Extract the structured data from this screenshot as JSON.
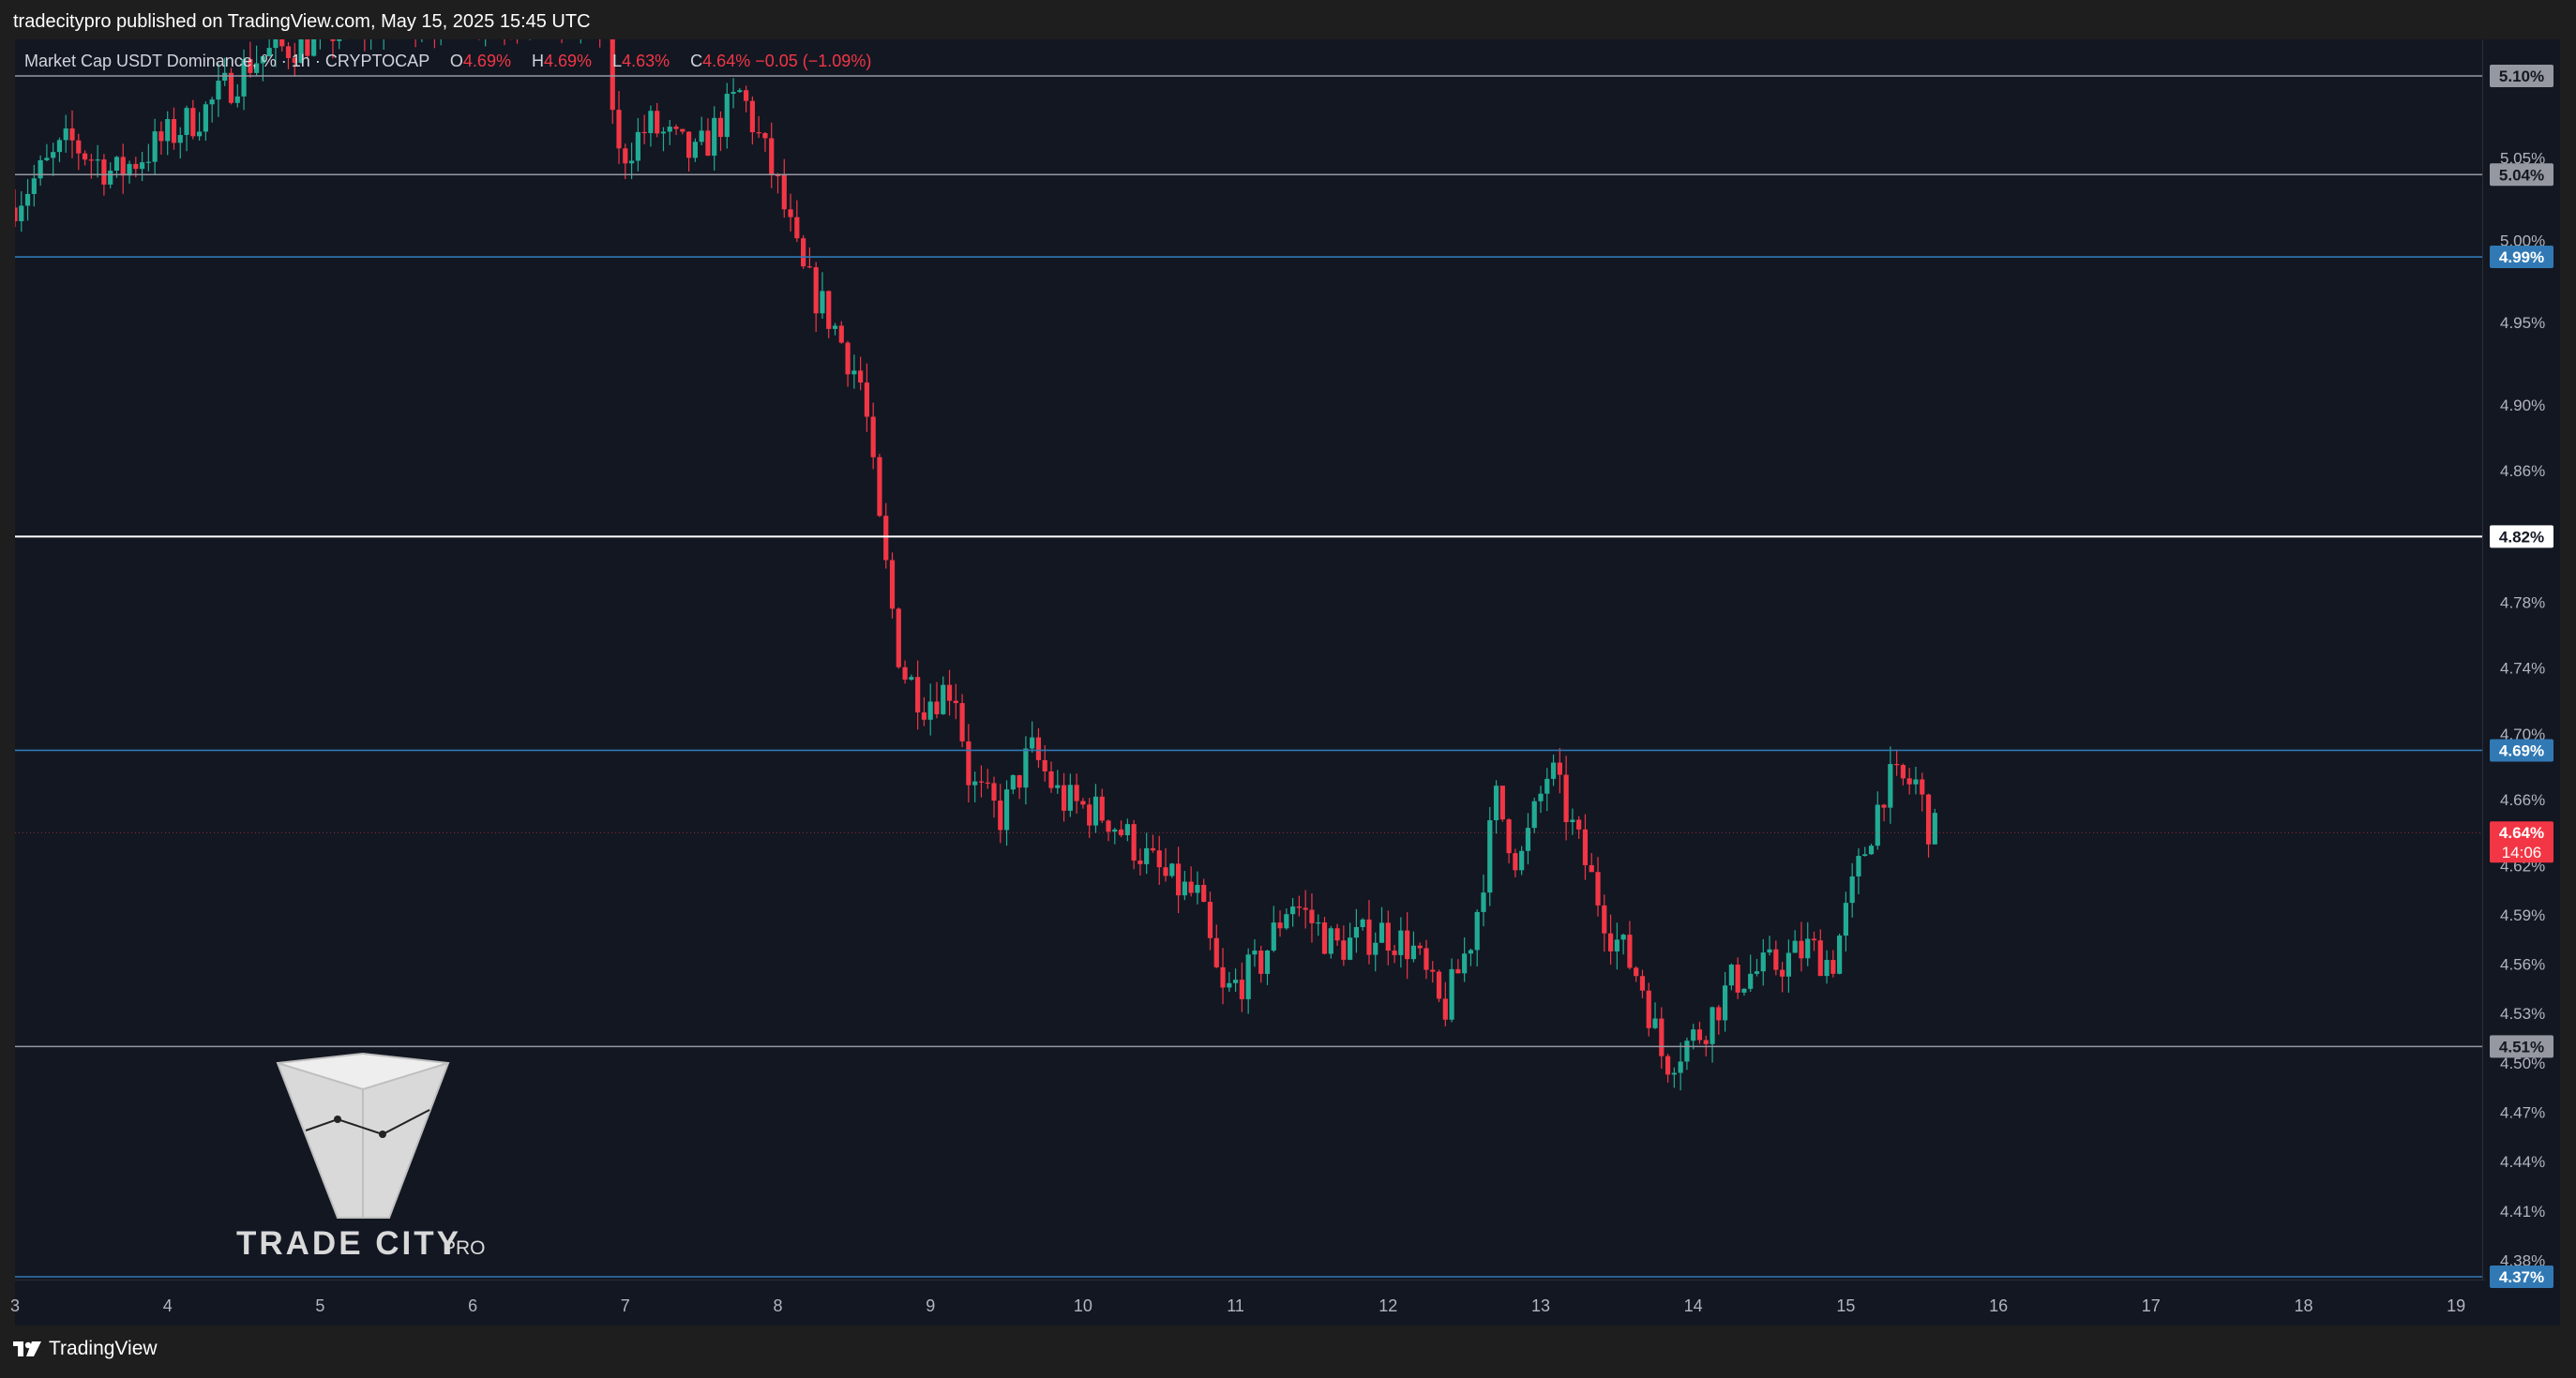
{
  "header": {
    "published": "tradecitypro published on TradingView.com, May 15, 2025 15:45 UTC"
  },
  "legend": {
    "symbol": "Market Cap USDT Dominance, %",
    "interval": "1h",
    "exchange": "CRYPTOCAP",
    "open_label": "O",
    "open": "4.69%",
    "high_label": "H",
    "high": "4.69%",
    "low_label": "L",
    "low": "4.63%",
    "close_label": "C",
    "close": "4.64%",
    "change": "−0.05 (−1.09%)"
  },
  "footer": {
    "brand": "TradingView"
  },
  "watermark": {
    "line1": "TRADE CITY",
    "line2": "PRO"
  },
  "colors": {
    "background": "#131722",
    "up": "#22ab94",
    "down": "#f23645",
    "level_white": "#ffffff",
    "level_gray": "#b2b5be",
    "level_blue": "#2962ff",
    "level_blue_line": "#3179b4"
  },
  "chart_data": {
    "type": "candlestick",
    "title": "Market Cap USDT Dominance, %",
    "interval": "1h",
    "x_axis_labels": [
      "3",
      "4",
      "5",
      "6",
      "7",
      "8",
      "9",
      "10",
      "11",
      "12",
      "13",
      "14",
      "15",
      "16",
      "17",
      "18",
      "19"
    ],
    "y_axis_ticks": [
      "5.05%",
      "5.00%",
      "4.95%",
      "4.90%",
      "4.86%",
      "4.78%",
      "4.74%",
      "4.70%",
      "4.66%",
      "4.62%",
      "4.59%",
      "4.56%",
      "4.53%",
      "4.50%",
      "4.47%",
      "4.44%",
      "4.41%",
      "4.38%"
    ],
    "ylim": [
      4.35,
      5.12
    ],
    "horizontal_levels": [
      {
        "label": "5.10%",
        "value": 5.1,
        "style": "gray"
      },
      {
        "label": "5.04%",
        "value": 5.04,
        "style": "gray"
      },
      {
        "label": "4.99%",
        "value": 4.99,
        "style": "blue"
      },
      {
        "label": "4.82%",
        "value": 4.82,
        "style": "white"
      },
      {
        "label": "4.69%",
        "value": 4.69,
        "style": "blue"
      },
      {
        "label": "4.51%",
        "value": 4.51,
        "style": "gray"
      },
      {
        "label": "4.37%",
        "value": 4.37,
        "style": "blue"
      }
    ],
    "current_price": {
      "label": "4.64%",
      "countdown": "14:06",
      "value": 4.64
    },
    "trend_path": [
      [
        3.0,
        5.02
      ],
      [
        3.4,
        5.06
      ],
      [
        3.7,
        5.04
      ],
      [
        4.0,
        5.06
      ],
      [
        4.3,
        5.08
      ],
      [
        4.6,
        5.11
      ],
      [
        4.9,
        5.12
      ],
      [
        5.2,
        5.13
      ],
      [
        6.0,
        5.14
      ],
      [
        6.9,
        5.13
      ],
      [
        7.0,
        5.05
      ],
      [
        7.2,
        5.07
      ],
      [
        7.5,
        5.05
      ],
      [
        7.8,
        5.09
      ],
      [
        8.05,
        5.03
      ],
      [
        8.2,
        4.98
      ],
      [
        8.4,
        4.95
      ],
      [
        8.6,
        4.91
      ],
      [
        8.7,
        4.83
      ],
      [
        8.85,
        4.74
      ],
      [
        9.0,
        4.72
      ],
      [
        9.2,
        4.73
      ],
      [
        9.3,
        4.67
      ],
      [
        9.5,
        4.65
      ],
      [
        9.7,
        4.69
      ],
      [
        9.9,
        4.66
      ],
      [
        10.2,
        4.65
      ],
      [
        10.4,
        4.63
      ],
      [
        10.6,
        4.61
      ],
      [
        10.8,
        4.6
      ],
      [
        10.95,
        4.54
      ],
      [
        11.2,
        4.56
      ],
      [
        11.4,
        4.6
      ],
      [
        11.7,
        4.57
      ],
      [
        12.0,
        4.58
      ],
      [
        12.2,
        4.57
      ],
      [
        12.4,
        4.53
      ],
      [
        12.6,
        4.58
      ],
      [
        12.75,
        4.66
      ],
      [
        12.9,
        4.62
      ],
      [
        13.1,
        4.68
      ],
      [
        13.3,
        4.63
      ],
      [
        13.5,
        4.58
      ],
      [
        13.7,
        4.55
      ],
      [
        13.85,
        4.5
      ],
      [
        14.1,
        4.52
      ],
      [
        14.3,
        4.55
      ],
      [
        14.6,
        4.56
      ],
      [
        14.8,
        4.57
      ],
      [
        14.95,
        4.56
      ],
      [
        15.1,
        4.61
      ],
      [
        15.3,
        4.67
      ],
      [
        15.5,
        4.67
      ],
      [
        15.6,
        4.64
      ]
    ]
  }
}
